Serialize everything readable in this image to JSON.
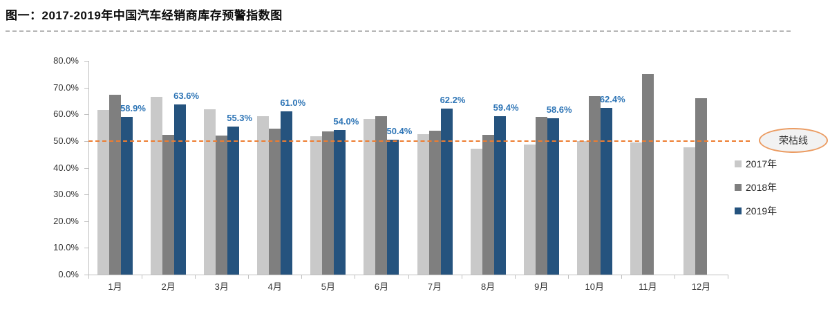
{
  "page_title": "图一：2017-2019年中国汽车经销商库存预警指数图",
  "chart_data": {
    "type": "bar",
    "title": "图一：2017-2019年中国汽车经销商库存预警指数图",
    "categories": [
      "1月",
      "2月",
      "3月",
      "4月",
      "5月",
      "6月",
      "7月",
      "8月",
      "9月",
      "10月",
      "11月",
      "12月"
    ],
    "series": [
      {
        "name": "2017年",
        "color": "#c9c9c9",
        "values": [
          61.5,
          66.6,
          61.9,
          59.2,
          51.8,
          58.2,
          52.5,
          47.0,
          48.7,
          49.9,
          49.5,
          47.7
        ]
      },
      {
        "name": "2018年",
        "color": "#7f7f7f",
        "values": [
          67.2,
          52.3,
          52.1,
          54.6,
          53.7,
          59.2,
          53.9,
          52.2,
          58.9,
          66.9,
          75.1,
          66.1
        ]
      },
      {
        "name": "2019年",
        "color": "#25537e",
        "values": [
          58.9,
          63.6,
          55.3,
          61.0,
          54.0,
          50.4,
          62.2,
          59.4,
          58.6,
          62.4,
          null,
          null
        ],
        "labels": [
          "58.9%",
          "63.6%",
          "55.3%",
          "61.0%",
          "54.0%",
          "50.4%",
          "62.2%",
          "59.4%",
          "58.6%",
          "62.4%",
          "",
          ""
        ]
      }
    ],
    "yticks": [
      "80.0%",
      "70.0%",
      "60.0%",
      "50.0%",
      "40.0%",
      "30.0%",
      "20.0%",
      "10.0%",
      "0.0%"
    ],
    "ylim": [
      0,
      80
    ],
    "grid": false,
    "legend_position": "right-middle",
    "data_label_color": "#2e75b6",
    "reference_line": {
      "value": 50,
      "label": "荣枯线",
      "line_color": "#ed7d31",
      "bubble_border_color": "#eb9b61",
      "bubble_fill": "#f2f2f2"
    }
  }
}
